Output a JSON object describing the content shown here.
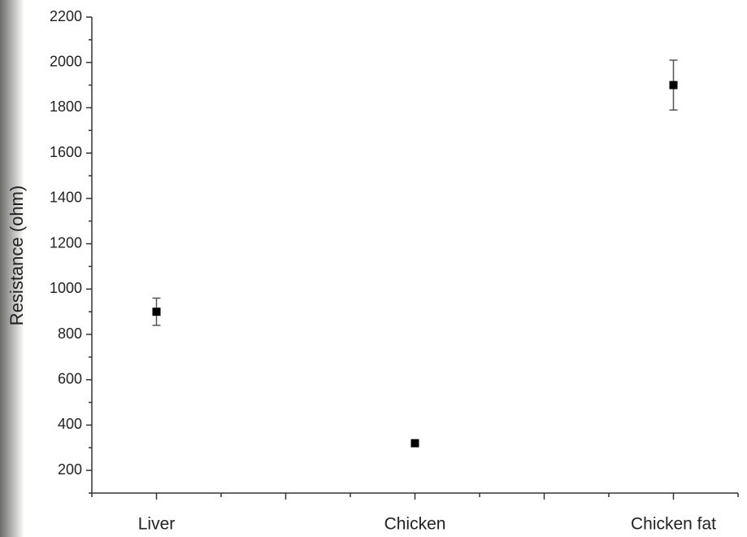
{
  "chart_data": {
    "type": "scatter",
    "y_label": "Resistance (ohm)",
    "categories": [
      "Liver",
      "Chicken",
      "Chicken fat"
    ],
    "values": [
      900,
      320,
      1900
    ],
    "errors": [
      60,
      10,
      110
    ],
    "color": "#000000",
    "ylim": [
      100,
      2200
    ],
    "yticks": [
      200,
      400,
      600,
      800,
      1000,
      1200,
      1400,
      1600,
      1800,
      2000,
      2200
    ]
  }
}
